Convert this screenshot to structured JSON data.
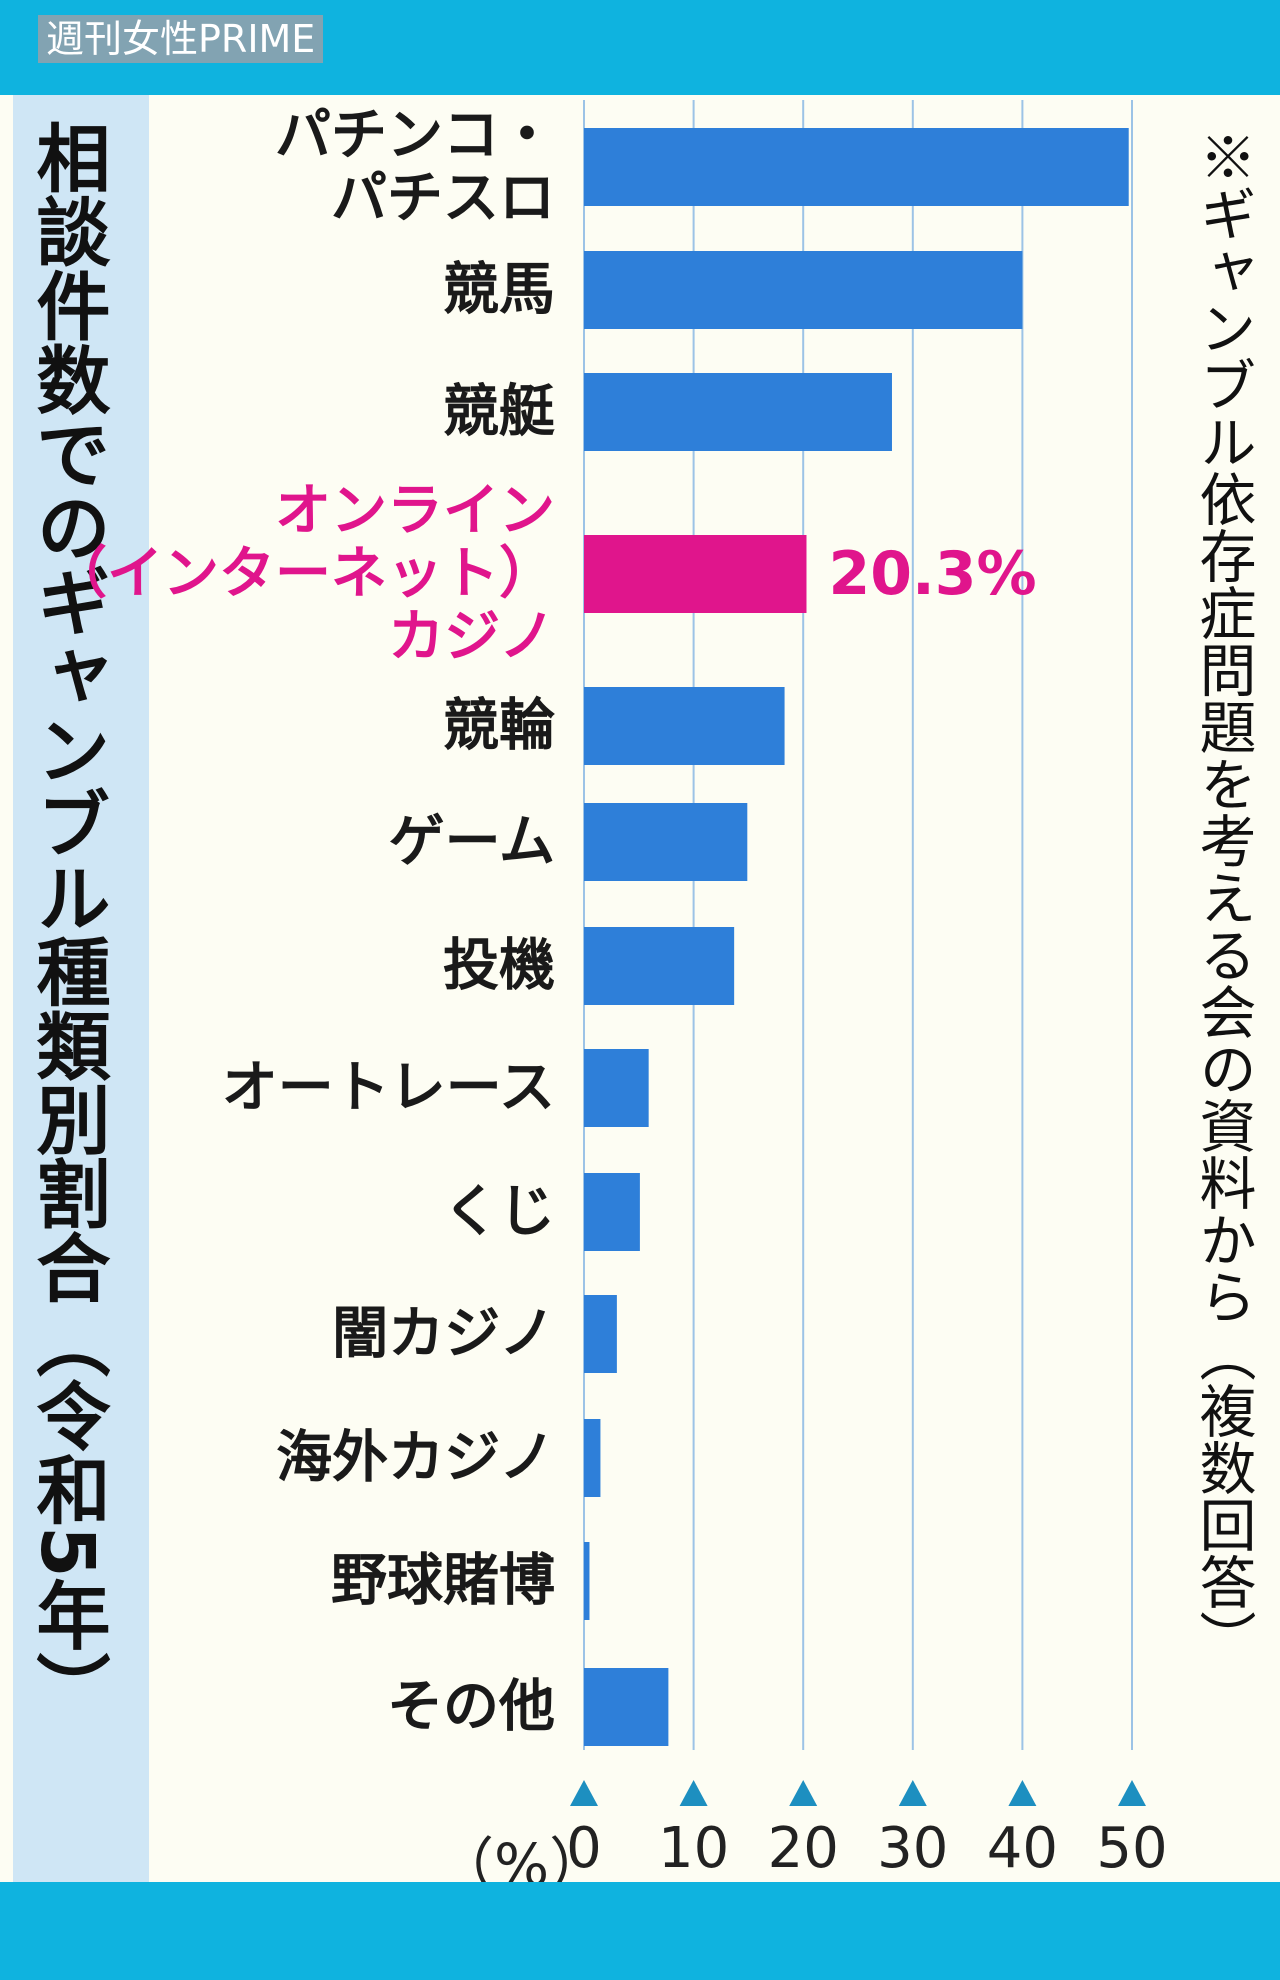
{
  "header": {
    "logo": "週刊女性PRIME"
  },
  "chart_data": {
    "type": "barh",
    "title": "相談件数でのギャンブル種類別割合（令和5年）",
    "note": "※ギャンブル依存症問題を考える会の資料から（複数回答）",
    "x_label": "（%）",
    "categories": [
      "パチンコ・\nパチスロ",
      "競馬",
      "競艇",
      "オンライン\n（インターネット）\nカジノ",
      "競輪",
      "ゲーム",
      "投機",
      "オートレース",
      "くじ",
      "闇カジノ",
      "海外カジノ",
      "野球賭博",
      "その他"
    ],
    "values": [
      49.7,
      40.0,
      28.1,
      20.3,
      18.3,
      14.9,
      13.7,
      5.9,
      5.1,
      3.0,
      1.5,
      0.5,
      7.7
    ],
    "value_labels": [
      null,
      null,
      null,
      "20.3%",
      null,
      null,
      null,
      null,
      null,
      null,
      null,
      null,
      null
    ],
    "color": "#2e7fd9",
    "colors": [
      "#2e7fd9",
      "#2e7fd9",
      "#2e7fd9",
      "#e0158c",
      "#2e7fd9",
      "#2e7fd9",
      "#2e7fd9",
      "#2e7fd9",
      "#2e7fd9",
      "#2e7fd9",
      "#2e7fd9",
      "#2e7fd9",
      "#2e7fd9"
    ],
    "xlim": [
      0,
      50
    ],
    "xticks": [
      0,
      10,
      20,
      30,
      40,
      50
    ],
    "grid": true
  }
}
